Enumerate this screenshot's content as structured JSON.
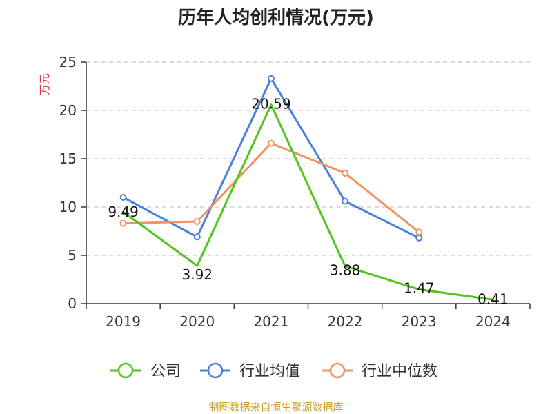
{
  "chart_data": {
    "type": "line",
    "title": "历年人均创利情况(万元)",
    "ylabel": "万元",
    "xlabel": "",
    "ylim": [
      0,
      25
    ],
    "yticks": [
      0,
      5,
      10,
      15,
      20,
      25
    ],
    "categories": [
      "2019",
      "2020",
      "2021",
      "2022",
      "2023",
      "2024"
    ],
    "series": [
      {
        "name": "公司",
        "color": "#52c41a",
        "values": [
          9.49,
          3.92,
          20.59,
          3.88,
          1.47,
          0.41
        ],
        "labels": [
          "9.49",
          "3.92",
          "20.59",
          "3.88",
          "1.47",
          "0.41"
        ],
        "markers": false
      },
      {
        "name": "行业均值",
        "color": "#4a7fdc",
        "values": [
          11.0,
          6.9,
          23.3,
          10.6,
          6.8,
          null
        ],
        "markers": true
      },
      {
        "name": "行业中位数",
        "color": "#f29260",
        "values": [
          8.3,
          8.5,
          16.6,
          13.5,
          7.4,
          null
        ],
        "markers": true
      }
    ],
    "grid": true,
    "legend": "bottom"
  },
  "source": "制图数据来自恒生聚源数据库"
}
